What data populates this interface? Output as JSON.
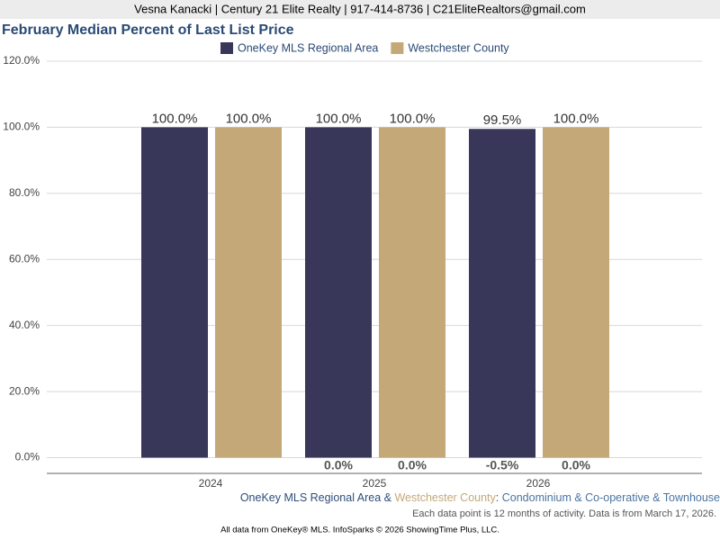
{
  "header": "Vesna Kanacki | Century 21 Elite Realty | 917-414-8736 | C21EliteRealtors@gmail.com",
  "chart_data": {
    "type": "bar",
    "title": "February Median Percent of Last List Price",
    "categories": [
      "2024",
      "2025",
      "2026"
    ],
    "series": [
      {
        "name": "OneKey MLS Regional Area",
        "color": "#383659",
        "values": [
          100,
          100,
          99.5
        ],
        "value_labels": [
          "100.0%",
          "100.0%",
          "99.5%"
        ],
        "changes": [
          null,
          "0.0%",
          "-0.5%"
        ]
      },
      {
        "name": "Westchester County",
        "color": "#c4a878",
        "values": [
          100,
          100,
          100
        ],
        "value_labels": [
          "100.0%",
          "100.0%",
          "100.0%"
        ],
        "changes": [
          null,
          "0.0%",
          "0.0%"
        ]
      }
    ],
    "ylim": [
      0,
      120
    ],
    "yticks": [
      {
        "value": 0,
        "label": "0.0%"
      },
      {
        "value": 20,
        "label": "20.0%"
      },
      {
        "value": 40,
        "label": "40.0%"
      },
      {
        "value": 60,
        "label": "60.0%"
      },
      {
        "value": 80,
        "label": "80.0%"
      },
      {
        "value": 100,
        "label": "100.0%"
      },
      {
        "value": 120,
        "label": "120.0%"
      }
    ],
    "grid": true,
    "legend": "top"
  },
  "caption": {
    "joiner": " & ",
    "separator": ": ",
    "property_type": "Condominium & Co-operative & Townhouse"
  },
  "note": "Each data point is 12 months of activity. Data is from March 17, 2026.",
  "credit": "All data from OneKey® MLS. InfoSparks © 2026 ShowingTime Plus, LLC."
}
